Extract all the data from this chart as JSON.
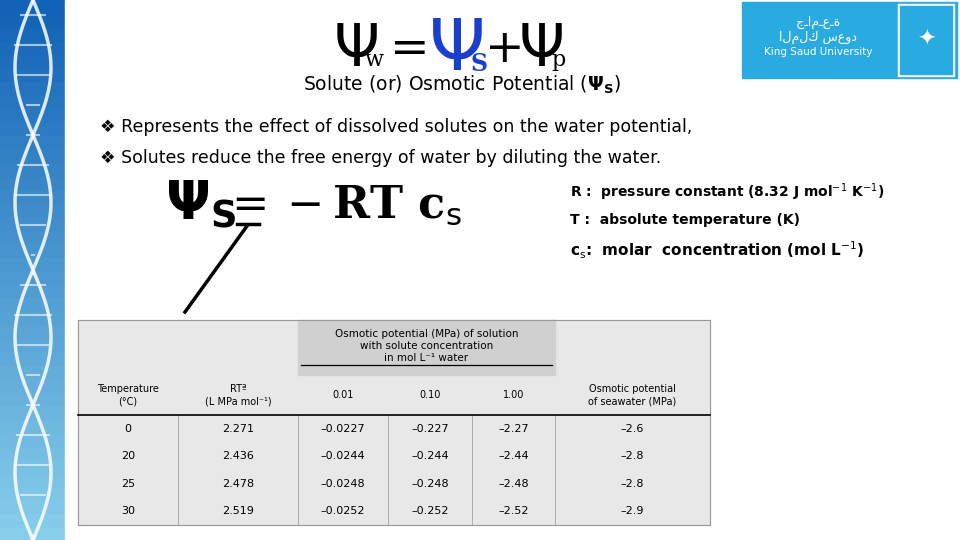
{
  "bg_color": "#ffffff",
  "ksu_color": "#29abe2",
  "title_psi_w_color": "#000000",
  "title_psi_s_color": "#1a3fcc",
  "bullet1": "❖ Represents the effect of dissolved solutes on the water potential,",
  "bullet2": "❖ Solutes reduce the free energy of water by diluting the water.",
  "R_label": "R :  pressure constant (8.32 J mol",
  "T_label": "T :  absolute temperature (K)",
  "cs_label_pre": "c",
  "cs_label_post": ":  molar  concentration (mol L",
  "table_merged_header_line1": "Osmotic potential (MPa) of solution",
  "table_merged_header_line2": "with solute concentration",
  "table_merged_header_line3": "in mol L⁻¹ water",
  "col_headers": [
    "Temperature\n(°C)",
    "RTª\n(L MPa mol⁻¹)",
    "0.01",
    "0.10",
    "1.00",
    "Osmotic potential\nof seawater (MPa)"
  ],
  "table_data": [
    [
      "0",
      "2.271",
      "–0.0227",
      "–0.227",
      "–2.27",
      "–2.6"
    ],
    [
      "20",
      "2.436",
      "–0.0244",
      "–0.244",
      "–2.44",
      "–2.8"
    ],
    [
      "25",
      "2.478",
      "–0.0248",
      "–0.248",
      "–2.48",
      "–2.8"
    ],
    [
      "30",
      "2.519",
      "–0.0252",
      "–0.252",
      "–2.52",
      "–2.9"
    ]
  ],
  "left_dna_top_color": "#87ceeb",
  "left_dna_bot_color": "#1a7ab5",
  "table_bg": "#e8e8e8",
  "table_header_bg": "#d0d0d0"
}
